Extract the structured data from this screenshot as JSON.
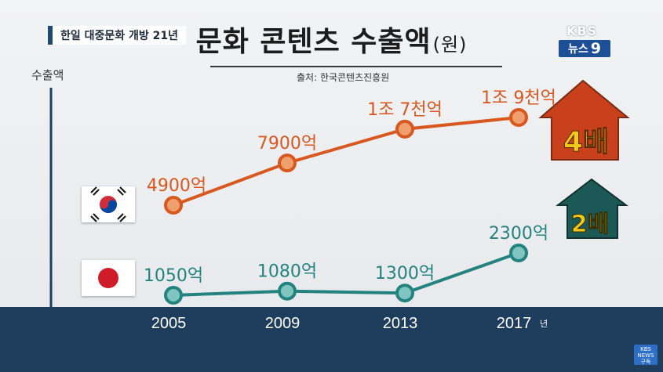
{
  "topic_label": "한일 대중문화 개방 21년",
  "title": "문화 콘텐츠 수출액",
  "title_unit": "(원)",
  "source": "출처: 한국콘텐츠진흥원",
  "broadcaster": "KBS",
  "program": "뉴스",
  "program_number": "9",
  "subscribe_badge_top": "KBS",
  "subscribe_badge_mid": "NEWS",
  "subscribe_badge_bottom": "구독",
  "colors": {
    "korea": "#d8581f",
    "japan": "#24837f",
    "arrow_korea": "#c8401c",
    "arrow_japan": "#1c5855",
    "badge_text": "#f2c81a",
    "band": "#1f3d5c"
  },
  "chart_data": {
    "type": "line",
    "ylabel": "수출액",
    "x": [
      "2005",
      "2009",
      "2013",
      "2017"
    ],
    "x_unit": "년",
    "series": [
      {
        "values": [
          4900,
          7900,
          17000,
          19000
        ],
        "labels": [
          "4900억",
          "7900억",
          "1조 7천억",
          "1조 9천억"
        ]
      },
      {
        "values": [
          1050,
          1080,
          1300,
          2300
        ],
        "labels": [
          "1050억",
          "1080억",
          "1300억",
          "2300억"
        ]
      }
    ],
    "annotations": [
      "4배",
      "2배"
    ]
  }
}
